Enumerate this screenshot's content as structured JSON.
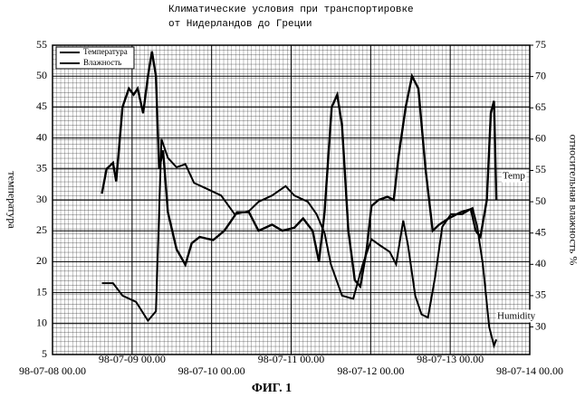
{
  "chart_data": {
    "type": "line",
    "title": [
      "Климатические условия при транспортировке",
      "от Нидерландов до Греции"
    ],
    "y_label": "температура",
    "y2_label": "относительная влажность %",
    "caption": "ФИГ. 1",
    "xlim": [
      0,
      6
    ],
    "xticks": [
      {
        "value": 0,
        "label": "98-07-08 00.00"
      },
      {
        "value": 1,
        "label": "98-07-09 00.00"
      },
      {
        "value": 2,
        "label": "98-07-10 00.00"
      },
      {
        "value": 3,
        "label": "98-07-11 00.00"
      },
      {
        "value": 4,
        "label": "98-07-12 00.00"
      },
      {
        "value": 5,
        "label": "98-07-13 00.00"
      },
      {
        "value": 6,
        "label": "98-07-14 00.00"
      }
    ],
    "ylim": [
      5,
      55
    ],
    "yticks": [
      5,
      10,
      15,
      20,
      25,
      30,
      35,
      40,
      45,
      50,
      55
    ],
    "y2lim": [
      25.6,
      75
    ],
    "y2ticks": [
      30,
      35,
      40,
      45,
      50,
      55,
      60,
      65,
      70,
      75
    ],
    "grid": true,
    "legend": "upper left",
    "series": [
      {
        "name": "Температура",
        "color": "#000000",
        "axis": "y",
        "x": [
          0.62,
          0.68,
          0.76,
          0.8,
          0.88,
          0.96,
          1.02,
          1.07,
          1.14,
          1.2,
          1.25,
          1.3,
          1.34,
          1.39,
          1.45,
          1.56,
          1.67,
          1.75,
          1.85,
          2.02,
          2.16,
          2.32,
          2.47,
          2.59,
          2.76,
          2.89,
          3.04,
          3.15,
          3.27,
          3.35,
          3.42,
          3.51,
          3.58,
          3.64,
          3.72,
          3.8,
          3.87,
          3.95,
          4.01,
          4.1,
          4.21,
          4.29,
          4.35,
          4.44,
          4.52,
          4.6,
          4.69,
          4.78,
          4.86,
          4.98,
          5.13,
          5.26,
          5.32,
          5.38,
          5.46,
          5.51,
          5.55,
          5.58
        ],
        "values": [
          31,
          35,
          36,
          33,
          45,
          48,
          47,
          48,
          44,
          50,
          54,
          50,
          35,
          38,
          28,
          22,
          19.5,
          23,
          24,
          23.5,
          25,
          28,
          28,
          25,
          26,
          25,
          25.5,
          27,
          25,
          20,
          28,
          45,
          47,
          42,
          25,
          17,
          16,
          22,
          29,
          30,
          30.5,
          30,
          37,
          45,
          50,
          48,
          35,
          25,
          26,
          27,
          28,
          28.5,
          25,
          24,
          30,
          44,
          46,
          30
        ]
      },
      {
        "name": "Влажность",
        "color": "#000000",
        "axis": "y2",
        "x": [
          0.62,
          0.76,
          0.88,
          1.05,
          1.2,
          1.3,
          1.37,
          1.45,
          1.56,
          1.67,
          1.78,
          1.95,
          2.12,
          2.29,
          2.47,
          2.59,
          2.76,
          2.93,
          3.04,
          3.21,
          3.32,
          3.42,
          3.5,
          3.64,
          3.78,
          3.9,
          4.01,
          4.12,
          4.24,
          4.32,
          4.41,
          4.47,
          4.56,
          4.64,
          4.72,
          4.81,
          4.9,
          5.01,
          5.15,
          5.28,
          5.34,
          5.41,
          5.49,
          5.55,
          5.58
        ],
        "values": [
          37,
          37,
          35,
          34,
          31,
          32.5,
          60,
          57,
          55.5,
          56,
          53,
          52,
          51,
          48,
          48.5,
          50,
          51,
          52.5,
          51,
          50,
          48,
          45,
          40,
          35,
          34.5,
          40,
          44,
          43,
          42,
          40,
          47,
          43,
          35,
          32,
          31.5,
          38,
          46,
          48,
          48,
          49,
          46,
          40,
          30,
          27,
          28
        ]
      }
    ],
    "annotations": [
      "Temp",
      "Humidity"
    ]
  }
}
